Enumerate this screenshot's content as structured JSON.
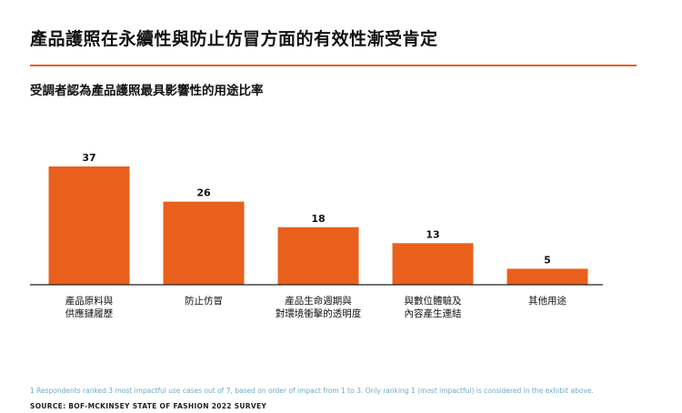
{
  "title": "產品護照在永續性與防止仿冒方面的有效性漸受肯定",
  "subtitle": "受調者認為產品護照最具影響性的用途比率",
  "footnote": "1 Respondents ranked 3 most impactful use cases out of 7, based on order of impact from 1 to 3. Only ranking 1 (most impactful) is considered in the exhibit above.",
  "source": "SOURCE: BOF-MCKINSEY STATE OF FASHION 2022 SURVEY",
  "colors": {
    "bar": "#e8601c",
    "accent": "#e8601c",
    "axis": "#222222",
    "footnote": "#6fa9c8"
  },
  "chart_data": {
    "type": "bar",
    "title": "受調者認為產品護照最具影響性的用途比率",
    "categories": [
      [
        "產品原料與",
        "供應鏈履歷"
      ],
      [
        "防止仿冒"
      ],
      [
        "產品生命週期與",
        "對環境衝擊的透明度"
      ],
      [
        "與數位體驗及",
        "內容產生連結"
      ],
      [
        "其他用途"
      ]
    ],
    "values": [
      37,
      26,
      18,
      13,
      5
    ],
    "ylim": [
      0,
      37
    ],
    "grid": false,
    "legend": "none"
  }
}
